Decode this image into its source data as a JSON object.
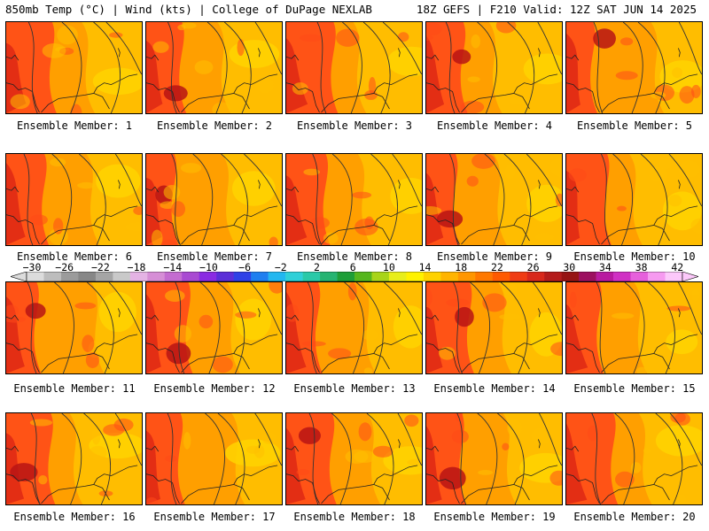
{
  "header": {
    "left": "850mb Temp (°C) | Wind (kts) | College of DuPage NEXLAB",
    "right": "18Z GEFS | F210 Valid: 12Z SAT JUN 14 2025"
  },
  "caption_prefix": "Ensemble Member: ",
  "members": [
    1,
    2,
    3,
    4,
    5,
    6,
    7,
    8,
    9,
    10,
    11,
    12,
    13,
    14,
    15,
    16,
    17,
    18,
    19,
    20
  ],
  "colorbar": {
    "labels": [
      "−30",
      "−26",
      "−22",
      "−18",
      "−14",
      "−10",
      "−6",
      "−2",
      "2",
      "6",
      "10",
      "14",
      "18",
      "22",
      "26",
      "30",
      "34",
      "38",
      "42"
    ],
    "colors": [
      "#dcdcdc",
      "#bdbdbd",
      "#9b9b9b",
      "#878787",
      "#a5a5a5",
      "#c9c9c9",
      "#e4b3e4",
      "#d68ed6",
      "#c46cd0",
      "#a94ad2",
      "#8a2be2",
      "#5b2fd8",
      "#2f41e6",
      "#1f7ff0",
      "#22b7f0",
      "#2fd0d8",
      "#2ac9a8",
      "#26b472",
      "#1e9e38",
      "#56b61e",
      "#a8d41a",
      "#e8ee1a",
      "#fff200",
      "#ffd200",
      "#ffb400",
      "#ff9600",
      "#ff7800",
      "#ff5a00",
      "#f03c14",
      "#d8281c",
      "#b41c1c",
      "#961414",
      "#9c1060",
      "#b81aa0",
      "#d030c4",
      "#e660dc",
      "#f69af0",
      "#fcc8fa"
    ]
  },
  "palette": {
    "base_orange": "#ff9f00",
    "yellow": "#ffc000",
    "light_yellow": "#ffd400",
    "red": "#ff4a18",
    "dark_red": "#e02a14",
    "deep_red": "#b81414",
    "contour": "#333333"
  }
}
